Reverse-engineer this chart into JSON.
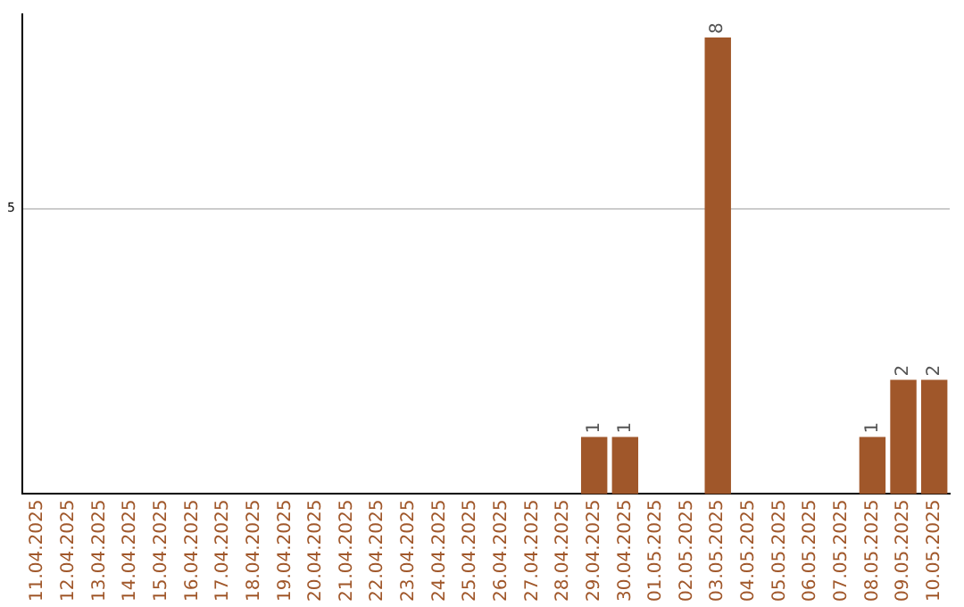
{
  "chart_data": {
    "type": "bar",
    "categories": [
      "11.04.2025",
      "12.04.2025",
      "13.04.2025",
      "14.04.2025",
      "15.04.2025",
      "16.04.2025",
      "17.04.2025",
      "18.04.2025",
      "19.04.2025",
      "20.04.2025",
      "21.04.2025",
      "22.04.2025",
      "23.04.2025",
      "24.04.2025",
      "25.04.2025",
      "26.04.2025",
      "27.04.2025",
      "28.04.2025",
      "29.04.2025",
      "30.04.2025",
      "01.05.2025",
      "02.05.2025",
      "03.05.2025",
      "04.05.2025",
      "05.05.2025",
      "06.05.2025",
      "07.05.2025",
      "08.05.2025",
      "09.05.2025",
      "10.05.2025"
    ],
    "values": [
      null,
      null,
      null,
      null,
      null,
      null,
      null,
      null,
      null,
      null,
      null,
      null,
      null,
      null,
      null,
      null,
      null,
      null,
      1,
      1,
      null,
      null,
      8,
      null,
      null,
      null,
      null,
      1,
      2,
      2
    ],
    "data_labels": true,
    "color": "#a0572a",
    "ylim": [
      0,
      8.4
    ],
    "yticks": [
      5
    ],
    "grid": "y",
    "legend": false
  }
}
